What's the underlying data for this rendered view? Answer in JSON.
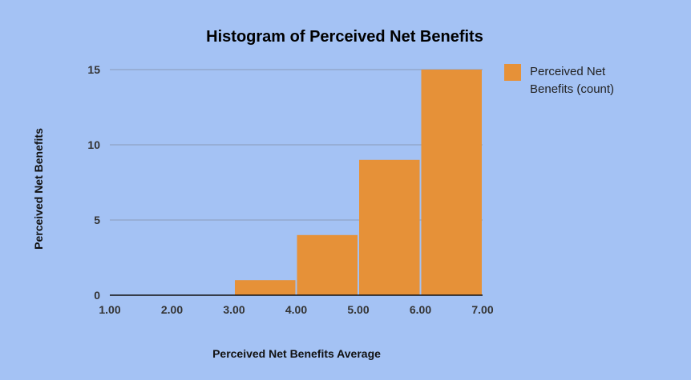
{
  "chart_data": {
    "type": "bar",
    "title": "Histogram of Perceived Net Benefits",
    "xlabel": "Perceived Net Benefits Average",
    "ylabel": "Perceived Net Benefits",
    "bins": [
      {
        "start": 3.0,
        "end": 4.0,
        "value": 1
      },
      {
        "start": 4.0,
        "end": 5.0,
        "value": 4
      },
      {
        "start": 5.0,
        "end": 6.0,
        "value": 9
      },
      {
        "start": 6.0,
        "end": 7.0,
        "value": 15
      }
    ],
    "series": [
      {
        "name": "Perceived Net Benefits (count)",
        "color": "#e69138"
      }
    ],
    "legend": {
      "position": "right",
      "lines": [
        "Perceived Net",
        "Benefits (count)"
      ]
    },
    "x_ticks": [
      "1.00",
      "2.00",
      "3.00",
      "4.00",
      "5.00",
      "6.00",
      "7.00"
    ],
    "y_ticks": [
      "0",
      "5",
      "10",
      "15"
    ],
    "xlim": [
      1,
      7
    ],
    "ylim": [
      0,
      15
    ],
    "grid": true,
    "background_color": "#a4c2f4",
    "gridline_color": "#8a9bb8"
  }
}
